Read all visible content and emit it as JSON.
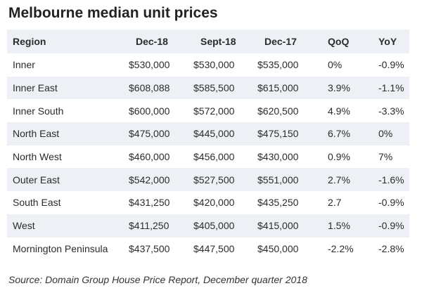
{
  "title": "Melbourne median unit prices",
  "table": {
    "header": [
      "Region",
      "Dec-18",
      "Sept-18",
      "Dec-17",
      "QoQ",
      "YoY"
    ],
    "rows": [
      [
        "Inner",
        "$530,000",
        "$530,000",
        "$535,000",
        "0%",
        "-0.9%"
      ],
      [
        "Inner East",
        "$608,088",
        "$585,500",
        "$615,000",
        "3.9%",
        "-1.1%"
      ],
      [
        "Inner South",
        "$600,000",
        "$572,000",
        "$620,500",
        "4.9%",
        "-3.3%"
      ],
      [
        "North East",
        "$475,000",
        "$445,000",
        "$475,150",
        "6.7%",
        "0%"
      ],
      [
        "North West",
        "$460,000",
        "$456,000",
        "$430,000",
        "0.9%",
        "7%"
      ],
      [
        "Outer East",
        "$542,000",
        "$527,500",
        "$551,000",
        "2.7%",
        "-1.6%"
      ],
      [
        "South East",
        "$431,250",
        "$420,000",
        "$435,250",
        "2.7",
        "-0.9%"
      ],
      [
        "West",
        "$411,250",
        "$405,000",
        "$415,000",
        "1.5%",
        "-0.9%"
      ],
      [
        "Mornington Peninsula",
        "$437,500",
        "$447,500",
        "$450,000",
        "-2.2%",
        "-2.8%"
      ]
    ]
  },
  "source": "Source: Domain Group House Price Report, December quarter 2018"
}
